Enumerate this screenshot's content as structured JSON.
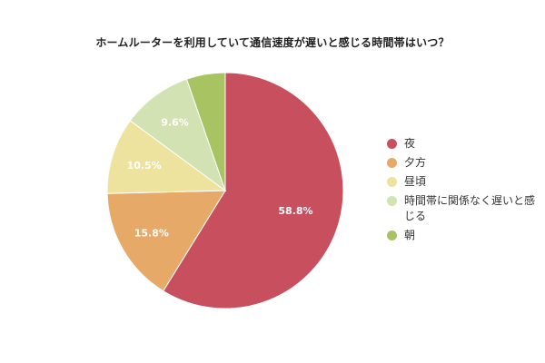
{
  "chart_data": {
    "type": "pie",
    "title": "ホームルーターを利用していて通信速度が遅いと感じる時間帯はいつ？",
    "slices": [
      {
        "label": "夜",
        "value": 58.8,
        "value_label": "58.8%",
        "color": "#c84f5e"
      },
      {
        "label": "夕方",
        "value": 15.8,
        "value_label": "15.8%",
        "color": "#e6a968"
      },
      {
        "label": "昼頃",
        "value": 10.5,
        "value_label": "10.5%",
        "color": "#ede39e"
      },
      {
        "label": "時間帯に関係なく遅いと感じる",
        "value": 9.6,
        "value_label": "9.6%",
        "color": "#d3e2b2"
      },
      {
        "label": "朝",
        "value": 5.3,
        "value_label": "",
        "color": "#a8c462"
      }
    ],
    "legend_position": "right",
    "start": "12 o'clock, clockwise"
  }
}
